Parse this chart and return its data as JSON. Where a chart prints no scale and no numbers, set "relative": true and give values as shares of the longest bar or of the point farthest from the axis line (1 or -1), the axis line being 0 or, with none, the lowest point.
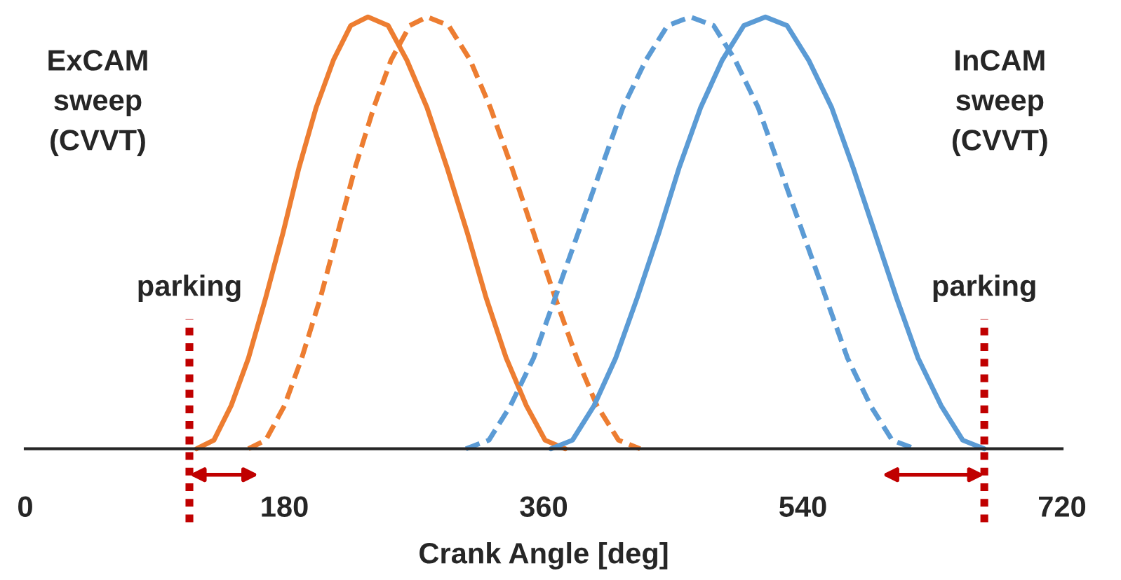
{
  "chart_data": {
    "type": "line",
    "relative": true,
    "xlabel": "Crank Angle [deg]",
    "xlim": [
      0,
      720
    ],
    "xticks": [
      0,
      180,
      360,
      540,
      720
    ],
    "grid": false,
    "annotations": [
      "ExCAM\nsweep\n(CVVT)",
      "InCAM\nsweep\n(CVVT)"
    ],
    "ref_lines": [
      {
        "axis": "x",
        "value": 114,
        "label": "parking",
        "color": "#c00000",
        "line_style": "dotted"
      },
      {
        "axis": "x",
        "value": 666,
        "label": "parking",
        "color": "#c00000",
        "line_style": "dotted"
      }
    ],
    "series": [
      {
        "color": "#ed7d31",
        "line_style": "solid",
        "x": [
          119,
          131,
          143,
          155,
          167,
          179,
          190,
          202,
          214,
          226,
          238,
          252,
          265,
          279,
          293,
          307,
          320,
          334,
          348,
          361,
          375
        ],
        "values": [
          0,
          0.02,
          0.1,
          0.21,
          0.35,
          0.5,
          0.65,
          0.79,
          0.9,
          0.98,
          1,
          0.98,
          0.9,
          0.79,
          0.65,
          0.5,
          0.35,
          0.21,
          0.1,
          0.02,
          0
        ]
      },
      {
        "color": "#ed7d31",
        "line_style": "dashed",
        "x": [
          155,
          167,
          180,
          192,
          205,
          217,
          229,
          242,
          254,
          267,
          279,
          294,
          309,
          323,
          338,
          353,
          368,
          383,
          397,
          412,
          427
        ],
        "values": [
          0,
          0.02,
          0.1,
          0.21,
          0.35,
          0.5,
          0.65,
          0.79,
          0.9,
          0.98,
          1,
          0.98,
          0.9,
          0.79,
          0.65,
          0.5,
          0.35,
          0.21,
          0.1,
          0.02,
          0
        ]
      },
      {
        "color": "#5b9bd5",
        "line_style": "dashed",
        "x": [
          306,
          322,
          337,
          353,
          368,
          384,
          400,
          415,
          431,
          446,
          462,
          478,
          493,
          509,
          524,
          540,
          556,
          571,
          587,
          602,
          618
        ],
        "values": [
          0,
          0.02,
          0.1,
          0.21,
          0.35,
          0.5,
          0.65,
          0.79,
          0.9,
          0.98,
          1,
          0.98,
          0.9,
          0.79,
          0.65,
          0.5,
          0.35,
          0.21,
          0.1,
          0.02,
          0
        ]
      },
      {
        "color": "#5b9bd5",
        "line_style": "solid",
        "x": [
          365,
          380,
          395,
          410,
          425,
          440,
          454,
          469,
          484,
          499,
          514,
          529,
          544,
          560,
          575,
          590,
          605,
          620,
          636,
          651,
          666
        ],
        "values": [
          0,
          0.02,
          0.1,
          0.21,
          0.35,
          0.5,
          0.65,
          0.79,
          0.9,
          0.98,
          1,
          0.98,
          0.9,
          0.79,
          0.65,
          0.5,
          0.35,
          0.21,
          0.1,
          0.02,
          0
        ]
      }
    ]
  }
}
